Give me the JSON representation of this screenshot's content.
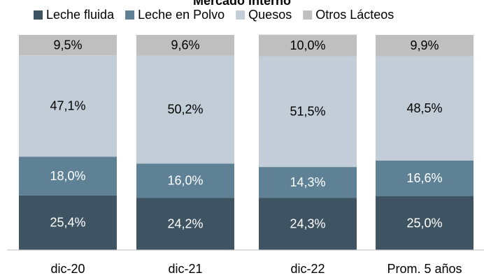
{
  "chart_data": {
    "type": "stacked-bar",
    "title": "Mercado interno",
    "categories": [
      "dic-20",
      "dic-21",
      "dic-22",
      "Prom. 5 años"
    ],
    "series": [
      {
        "name": "Leche fluida",
        "color": "#3f5462",
        "values": [
          25.4,
          24.2,
          24.3,
          25.0
        ],
        "value_labels": [
          "25,4%",
          "24,2%",
          "24,3%",
          "25,0%"
        ]
      },
      {
        "name": "Leche en Polvo",
        "color": "#5f8195",
        "values": [
          18.0,
          16.0,
          14.3,
          16.6
        ],
        "value_labels": [
          "18,0%",
          "16,0%",
          "14,3%",
          "16,6%"
        ]
      },
      {
        "name": "Quesos",
        "color": "#c2cdd7",
        "values": [
          47.1,
          50.2,
          51.5,
          48.5
        ],
        "value_labels": [
          "47,1%",
          "50,2%",
          "51,5%",
          "48,5%"
        ]
      },
      {
        "name": "Otros Lácteos",
        "color": "#bfbfbf",
        "values": [
          9.5,
          9.6,
          10.0,
          9.9
        ],
        "value_labels": [
          "9,5%",
          "9,6%",
          "10,0%",
          "9,9%"
        ]
      }
    ],
    "ylim": [
      0,
      100
    ]
  }
}
